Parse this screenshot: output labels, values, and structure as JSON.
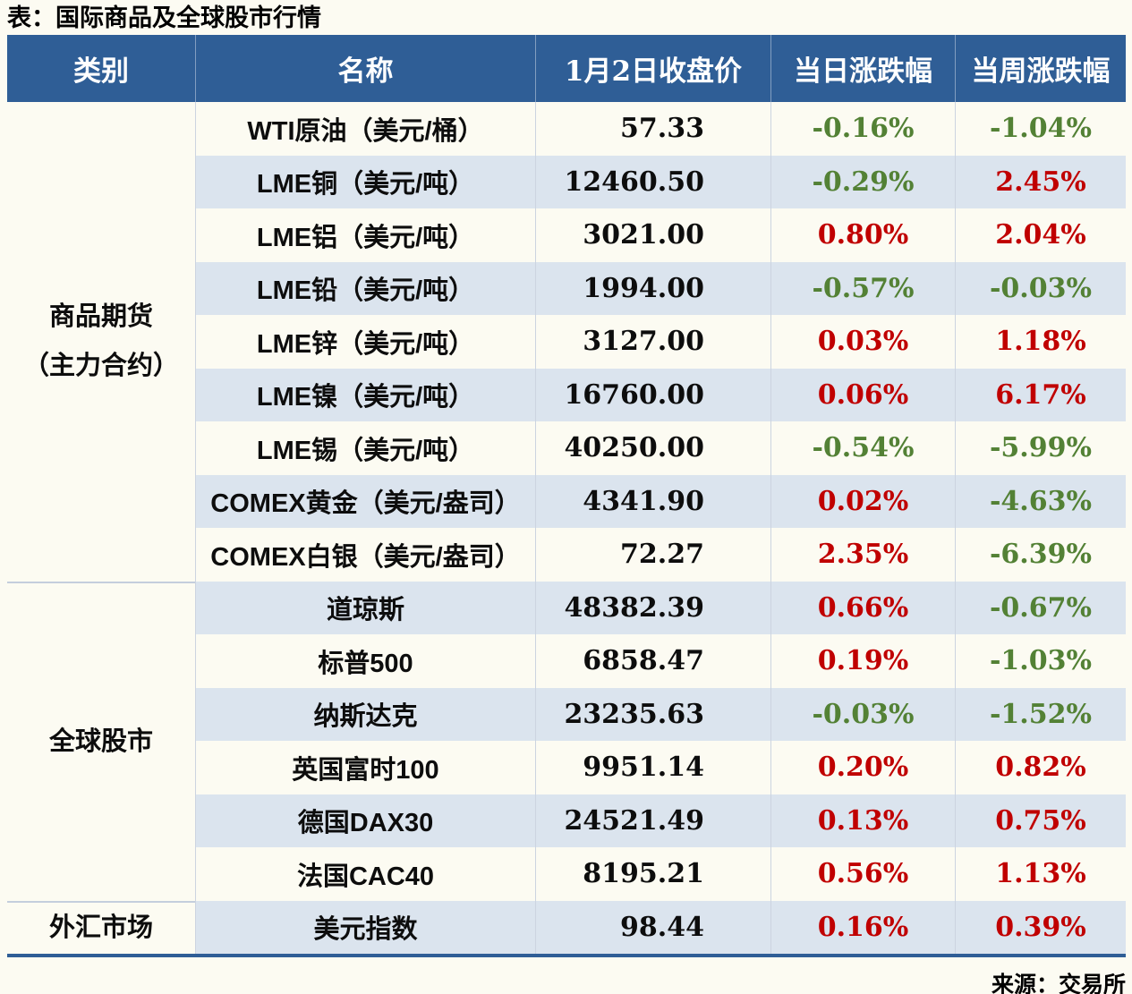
{
  "chart_data": {
    "type": "table",
    "title": "表：国际商品及全球股市行情",
    "columns": [
      "类别",
      "名称",
      "1月2日收盘价",
      "当日涨跌幅",
      "当周涨跌幅"
    ],
    "groups": [
      {
        "category": "商品期货\n（主力合约）",
        "rows": [
          {
            "name": "WTI原油（美元/桶）",
            "close": "57.33",
            "day_change": "-0.16%",
            "week_change": "-1.04%"
          },
          {
            "name": "LME铜（美元/吨）",
            "close": "12460.50",
            "day_change": "-0.29%",
            "week_change": "2.45%"
          },
          {
            "name": "LME铝（美元/吨）",
            "close": "3021.00",
            "day_change": "0.80%",
            "week_change": "2.04%"
          },
          {
            "name": "LME铅（美元/吨）",
            "close": "1994.00",
            "day_change": "-0.57%",
            "week_change": "-0.03%"
          },
          {
            "name": "LME锌（美元/吨）",
            "close": "3127.00",
            "day_change": "0.03%",
            "week_change": "1.18%"
          },
          {
            "name": "LME镍（美元/吨）",
            "close": "16760.00",
            "day_change": "0.06%",
            "week_change": "6.17%"
          },
          {
            "name": "LME锡（美元/吨）",
            "close": "40250.00",
            "day_change": "-0.54%",
            "week_change": "-5.99%"
          },
          {
            "name": "COMEX黄金（美元/盎司）",
            "close": "4341.90",
            "day_change": "0.02%",
            "week_change": "-4.63%"
          },
          {
            "name": "COMEX白银（美元/盎司）",
            "close": "72.27",
            "day_change": "2.35%",
            "week_change": "-6.39%"
          }
        ]
      },
      {
        "category": "全球股市",
        "rows": [
          {
            "name": "道琼斯",
            "close": "48382.39",
            "day_change": "0.66%",
            "week_change": "-0.67%"
          },
          {
            "name": "标普500",
            "close": "6858.47",
            "day_change": "0.19%",
            "week_change": "-1.03%"
          },
          {
            "name": "纳斯达克",
            "close": "23235.63",
            "day_change": "-0.03%",
            "week_change": "-1.52%"
          },
          {
            "name": "英国富时100",
            "close": "9951.14",
            "day_change": "0.20%",
            "week_change": "0.82%"
          },
          {
            "name": "德国DAX30",
            "close": "24521.49",
            "day_change": "0.13%",
            "week_change": "0.75%"
          },
          {
            "name": "法国CAC40",
            "close": "8195.21",
            "day_change": "0.56%",
            "week_change": "1.13%"
          }
        ]
      },
      {
        "category": "外汇市场",
        "rows": [
          {
            "name": "美元指数",
            "close": "98.44",
            "day_change": "0.16%",
            "week_change": "0.39%"
          }
        ]
      }
    ],
    "source": "来源：交易所",
    "legend": "positive values shown red (up), negative values shown green (down)"
  },
  "colors": {
    "header-bg": "#2f5e96",
    "stripe-bg": "#dbe4ee",
    "up-color": "#c00000",
    "down-color": "#538135",
    "grid-line": "#ccd4e0"
  }
}
